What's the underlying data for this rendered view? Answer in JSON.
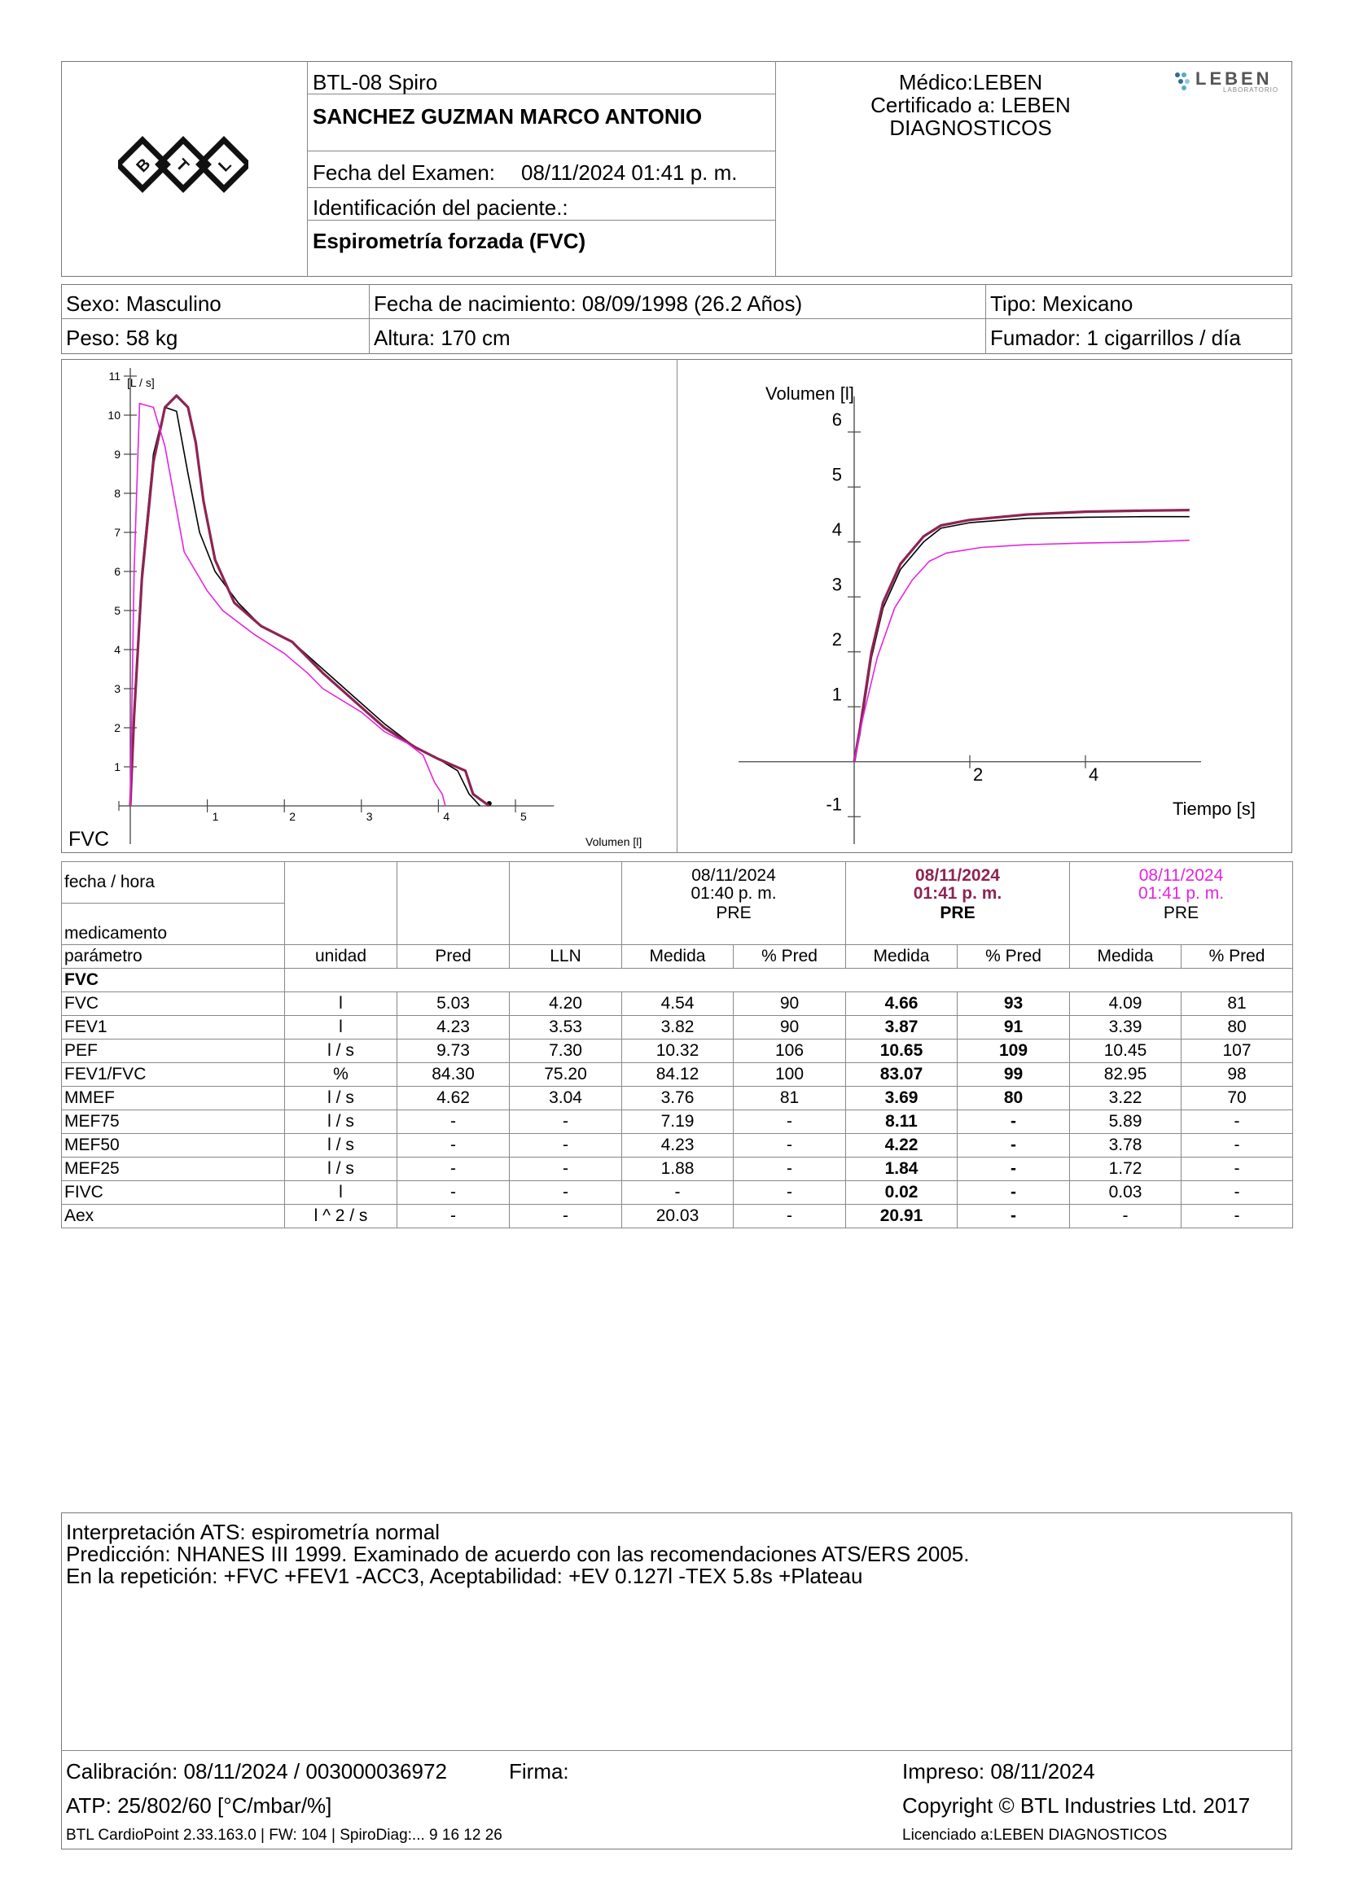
{
  "header": {
    "device": "BTL-08 Spiro",
    "patient_name": "SANCHEZ GUZMAN MARCO ANTONIO",
    "exam_date_label": "Fecha del Examen:",
    "exam_date_value": "08/11/2024 01:41 p. m.",
    "patient_id_label": "Identificación del paciente.:",
    "test_name": "Espirometría forzada (FVC)",
    "doctor_line": "Médico:LEBEN",
    "certified_line1": "Certificado a: LEBEN",
    "certified_line2": "DIAGNOSTICOS",
    "lab_logo_text": "LEBEN",
    "lab_logo_sub": "LABORATORIO"
  },
  "patient": {
    "sexo": "Sexo: Masculino",
    "nacimiento": "Fecha de nacimiento: 08/09/1998 (26.2 Años)",
    "tipo": "Tipo: Mexicano",
    "peso": "Peso: 58 kg",
    "altura": "Altura: 170 cm",
    "fumador": "Fumador: 1 cigarrillos / día"
  },
  "colors": {
    "black": "#000000",
    "purple": "#8e2454",
    "magenta": "#e623e0",
    "border": "#888888"
  },
  "chart_data": [
    {
      "type": "line",
      "title": "FVC",
      "xlabel": "Volumen [l]",
      "ylabel": "[L / s]",
      "xlim": [
        0,
        5.5
      ],
      "ylim": [
        0,
        11
      ],
      "x_ticks": [
        "1",
        "2",
        "3",
        "4",
        "5"
      ],
      "y_ticks": [
        "1",
        "2",
        "3",
        "4",
        "5",
        "6",
        "7",
        "8",
        "9",
        "10",
        "11"
      ],
      "series": [
        {
          "color": "#000000",
          "width": 1.6,
          "points": [
            [
              0,
              0
            ],
            [
              0.05,
              2.5
            ],
            [
              0.15,
              6
            ],
            [
              0.3,
              9
            ],
            [
              0.45,
              10.2
            ],
            [
              0.6,
              10.1
            ],
            [
              0.75,
              8.5
            ],
            [
              0.9,
              7
            ],
            [
              1.1,
              6
            ],
            [
              1.4,
              5.2
            ],
            [
              1.7,
              4.6
            ],
            [
              2.1,
              4.2
            ],
            [
              2.5,
              3.5
            ],
            [
              2.9,
              2.8
            ],
            [
              3.3,
              2.1
            ],
            [
              3.7,
              1.5
            ],
            [
              4.0,
              1.2
            ],
            [
              4.25,
              0.9
            ],
            [
              4.4,
              0.3
            ],
            [
              4.54,
              0
            ]
          ]
        },
        {
          "color": "#8e2454",
          "width": 3.2,
          "points": [
            [
              0,
              0
            ],
            [
              0.05,
              2.3
            ],
            [
              0.15,
              5.8
            ],
            [
              0.3,
              8.8
            ],
            [
              0.45,
              10.2
            ],
            [
              0.6,
              10.5
            ],
            [
              0.75,
              10.2
            ],
            [
              0.85,
              9.3
            ],
            [
              0.95,
              7.8
            ],
            [
              1.1,
              6.3
            ],
            [
              1.35,
              5.2
            ],
            [
              1.7,
              4.6
            ],
            [
              2.1,
              4.2
            ],
            [
              2.5,
              3.4
            ],
            [
              2.9,
              2.7
            ],
            [
              3.3,
              2.0
            ],
            [
              3.7,
              1.5
            ],
            [
              4.0,
              1.2
            ],
            [
              4.35,
              0.9
            ],
            [
              4.45,
              0.3
            ],
            [
              4.66,
              0
            ]
          ]
        },
        {
          "color": "#e623e0",
          "width": 1.6,
          "points": [
            [
              0,
              0
            ],
            [
              0.05,
              6
            ],
            [
              0.12,
              10.3
            ],
            [
              0.3,
              10.2
            ],
            [
              0.45,
              9.2
            ],
            [
              0.7,
              6.5
            ],
            [
              1.0,
              5.5
            ],
            [
              1.2,
              5.0
            ],
            [
              1.6,
              4.4
            ],
            [
              2.0,
              3.9
            ],
            [
              2.3,
              3.4
            ],
            [
              2.5,
              3.0
            ],
            [
              3.0,
              2.4
            ],
            [
              3.3,
              1.9
            ],
            [
              3.6,
              1.6
            ],
            [
              3.8,
              1.3
            ],
            [
              3.95,
              0.6
            ],
            [
              4.05,
              0.3
            ],
            [
              4.09,
              0
            ]
          ]
        }
      ]
    },
    {
      "type": "line",
      "xlabel": "Tiempo [s]",
      "ylabel": "Volumen [l]",
      "xlim": [
        -2,
        6
      ],
      "ylim": [
        -1,
        6.5
      ],
      "x_ticks": [
        "2",
        "4"
      ],
      "y_ticks": [
        "-1",
        "1",
        "2",
        "3",
        "4",
        "5",
        "6"
      ],
      "series": [
        {
          "color": "#000000",
          "width": 1.6,
          "points": [
            [
              0,
              0
            ],
            [
              0.1,
              0.5
            ],
            [
              0.3,
              1.9
            ],
            [
              0.5,
              2.8
            ],
            [
              0.8,
              3.5
            ],
            [
              1.2,
              4.0
            ],
            [
              1.5,
              4.25
            ],
            [
              2,
              4.35
            ],
            [
              3,
              4.43
            ],
            [
              4,
              4.45
            ],
            [
              5,
              4.46
            ],
            [
              5.8,
              4.46
            ]
          ]
        },
        {
          "color": "#8e2454",
          "width": 3.2,
          "points": [
            [
              0,
              0
            ],
            [
              0.1,
              0.6
            ],
            [
              0.3,
              2.0
            ],
            [
              0.5,
              2.9
            ],
            [
              0.8,
              3.6
            ],
            [
              1.2,
              4.1
            ],
            [
              1.5,
              4.3
            ],
            [
              2,
              4.4
            ],
            [
              3,
              4.5
            ],
            [
              4,
              4.55
            ],
            [
              5,
              4.57
            ],
            [
              5.8,
              4.58
            ]
          ]
        },
        {
          "color": "#e623e0",
          "width": 1.6,
          "points": [
            [
              0,
              0
            ],
            [
              0.15,
              0.8
            ],
            [
              0.4,
              1.9
            ],
            [
              0.7,
              2.8
            ],
            [
              1.0,
              3.3
            ],
            [
              1.3,
              3.65
            ],
            [
              1.6,
              3.8
            ],
            [
              2.2,
              3.9
            ],
            [
              3,
              3.95
            ],
            [
              4,
              3.98
            ],
            [
              5,
              4.0
            ],
            [
              5.8,
              4.03
            ]
          ]
        }
      ]
    }
  ],
  "table": {
    "fecha_label": "fecha / hora",
    "medicamento_label": "medicamento",
    "sessions": [
      {
        "date": "08/11/2024",
        "time": "01:40 p. m.",
        "med": "PRE",
        "color": "#000000",
        "bold": false
      },
      {
        "date": "08/11/2024",
        "time": "01:41 p. m.",
        "med": "PRE",
        "color": "#8e2454",
        "bold": true
      },
      {
        "date": "08/11/2024",
        "time": "01:41 p. m.",
        "med": "PRE",
        "color": "#e623e0",
        "bold": false
      }
    ],
    "columns": [
      "parámetro",
      "unidad",
      "Pred",
      "LLN",
      "Medida",
      "% Pred",
      "Medida",
      "% Pred",
      "Medida",
      "% Pred"
    ],
    "section": "FVC",
    "rows": [
      [
        "FVC",
        "l",
        "5.03",
        "4.20",
        "4.54",
        "90",
        "4.66",
        "93",
        "4.09",
        "81"
      ],
      [
        "FEV1",
        "l",
        "4.23",
        "3.53",
        "3.82",
        "90",
        "3.87",
        "91",
        "3.39",
        "80"
      ],
      [
        "PEF",
        "l / s",
        "9.73",
        "7.30",
        "10.32",
        "106",
        "10.65",
        "109",
        "10.45",
        "107"
      ],
      [
        "FEV1/FVC",
        "%",
        "84.30",
        "75.20",
        "84.12",
        "100",
        "83.07",
        "99",
        "82.95",
        "98"
      ],
      [
        "MMEF",
        "l / s",
        "4.62",
        "3.04",
        "3.76",
        "81",
        "3.69",
        "80",
        "3.22",
        "70"
      ],
      [
        "MEF75",
        "l / s",
        "-",
        "-",
        "7.19",
        "-",
        "8.11",
        "-",
        "5.89",
        "-"
      ],
      [
        "MEF50",
        "l / s",
        "-",
        "-",
        "4.23",
        "-",
        "4.22",
        "-",
        "3.78",
        "-"
      ],
      [
        "MEF25",
        "l / s",
        "-",
        "-",
        "1.88",
        "-",
        "1.84",
        "-",
        "1.72",
        "-"
      ],
      [
        "FIVC",
        "l",
        "-",
        "-",
        "-",
        "-",
        "0.02",
        "-",
        "0.03",
        "-"
      ],
      [
        "Aex",
        "l ^ 2 / s",
        "-",
        "-",
        "20.03",
        "-",
        "20.91",
        "-",
        "-",
        "-"
      ]
    ]
  },
  "interpretation": {
    "line1": "Interpretación ATS: espirometría normal",
    "line2": "Predicción: NHANES III 1999. Examinado de acuerdo con las recomendaciones ATS/ERS 2005.",
    "line3": "En la repetición: +FVC +FEV1 -ACC3, Aceptabilidad: +EV 0.127l -TEX 5.8s +Plateau"
  },
  "footer": {
    "calibracion": "Calibración: 08/11/2024 / 003000036972",
    "firma": "Firma:",
    "impreso": "Impreso: 08/11/2024",
    "atp": "ATP: 25/802/60 [°C/mbar/%]",
    "copyright": "Copyright © BTL Industries Ltd. 2017",
    "software": "BTL CardioPoint 2.33.163.0 | FW: 104 | SpiroDiag:... 9 16 12 26",
    "licencia": "Licenciado a:LEBEN DIAGNOSTICOS"
  }
}
